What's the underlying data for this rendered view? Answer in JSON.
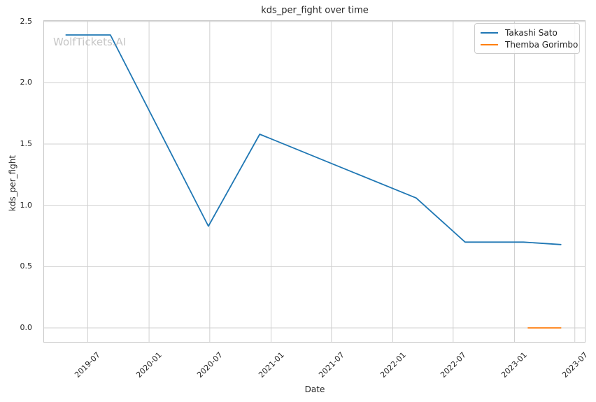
{
  "watermark": "WolfTickets.AI",
  "colors": {
    "background": "#ffffff",
    "grid": "#d0d0d0",
    "spine": "#c8c8c8",
    "text": "#262626",
    "watermark": "#c6c6c6",
    "series_blue": "#1f77b4",
    "series_orange": "#ff7f0e"
  },
  "chart_data": {
    "type": "line",
    "title": "kds_per_fight over time",
    "xlabel": "Date",
    "ylabel": "kds_per_fight",
    "grid": true,
    "legend_position": "upper right",
    "x_axis": {
      "tick_labels": [
        "2019-07",
        "2020-01",
        "2020-07",
        "2021-01",
        "2021-07",
        "2022-01",
        "2022-07",
        "2023-01",
        "2023-07"
      ],
      "tick_dates": [
        "2019-07-01",
        "2020-01-01",
        "2020-07-01",
        "2021-01-01",
        "2021-07-01",
        "2022-01-01",
        "2022-07-01",
        "2023-01-01",
        "2023-07-01"
      ],
      "lim_dates": [
        "2019-02-18",
        "2023-08-02"
      ]
    },
    "y_axis": {
      "tick_labels": [
        "0.0",
        "0.5",
        "1.0",
        "1.5",
        "2.0",
        "2.5"
      ],
      "tick_values": [
        0.0,
        0.5,
        1.0,
        1.5,
        2.0,
        2.5
      ],
      "lim": [
        -0.12,
        2.51
      ]
    },
    "series": [
      {
        "name": "Takashi Sato",
        "color": "#1f77b4",
        "x": [
          "2019-04-27",
          "2019-09-07",
          "2020-06-27",
          "2020-11-28",
          "2022-03-12",
          "2022-08-06",
          "2023-01-28",
          "2023-05-20"
        ],
        "y": [
          2.39,
          2.39,
          0.83,
          1.58,
          1.06,
          0.7,
          0.7,
          0.68
        ]
      },
      {
        "name": "Themba Gorimbo",
        "color": "#ff7f0e",
        "x": [
          "2023-02-11",
          "2023-05-20"
        ],
        "y": [
          0.0,
          0.0
        ]
      }
    ]
  }
}
